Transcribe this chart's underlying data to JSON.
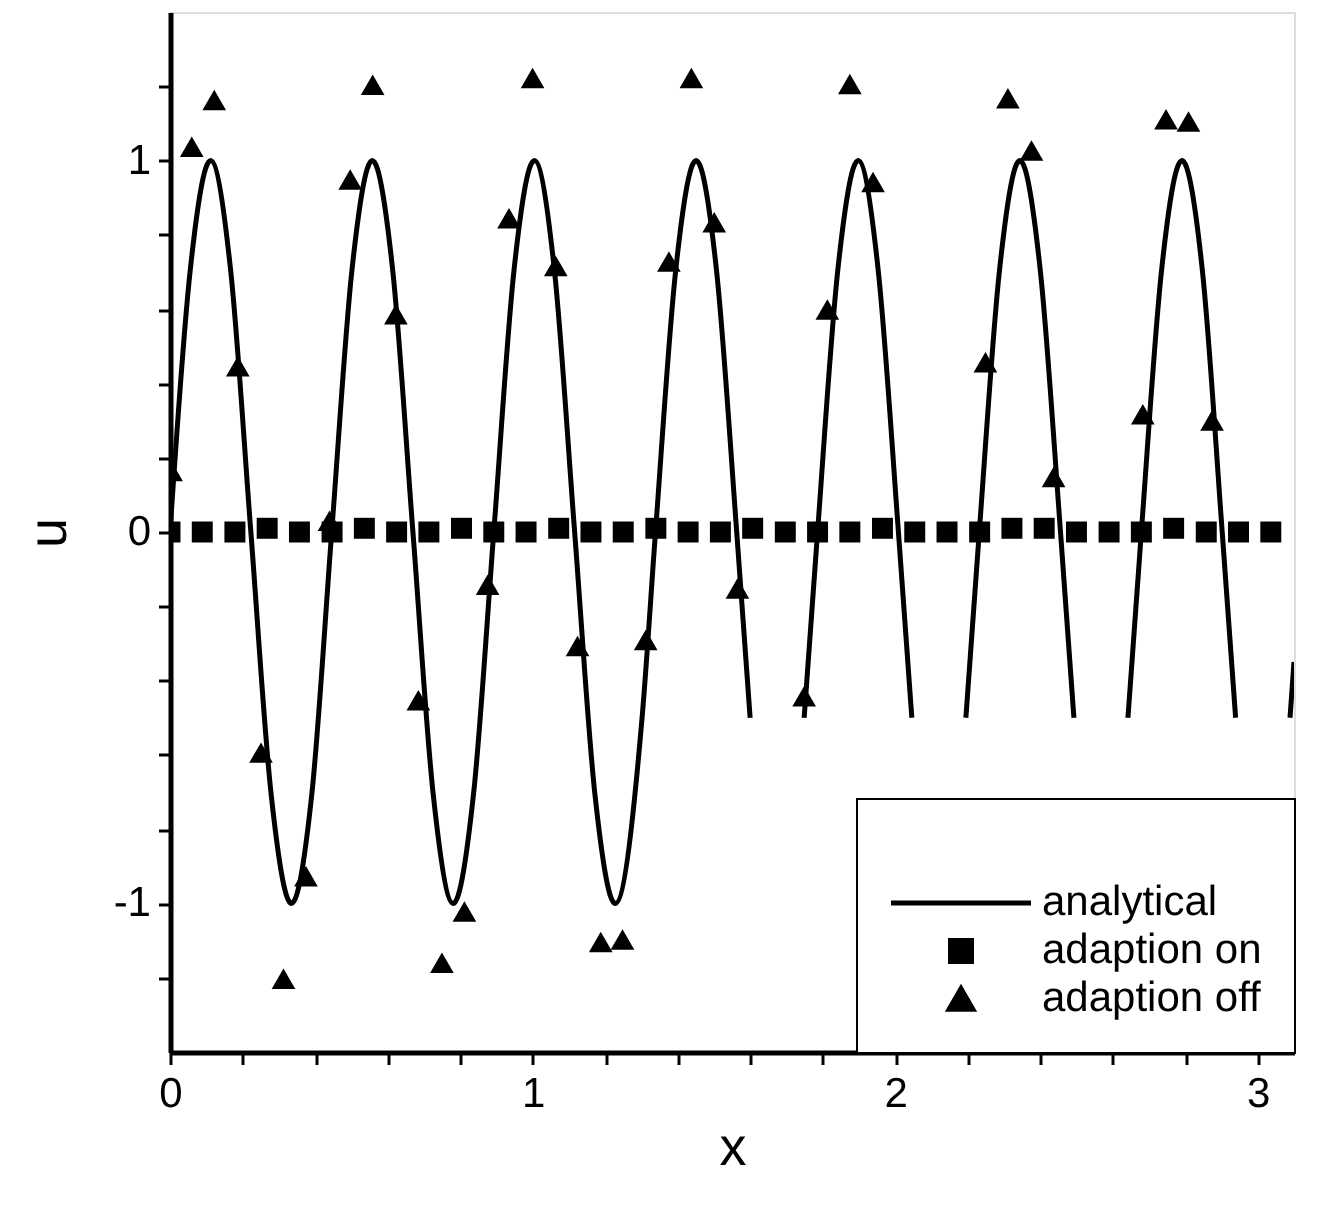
{
  "chart_data": {
    "type": "line",
    "xlabel": "x",
    "ylabel": "u",
    "xlim": [
      0,
      3.1
    ],
    "ylim": [
      -1.4,
      1.4
    ],
    "xticks": [
      0,
      {
        "value": 0.2,
        "label": null
      },
      {
        "value": 0.4,
        "label": null
      },
      {
        "value": 0.6,
        "label": null
      },
      {
        "value": 0.8,
        "label": null
      },
      1,
      {
        "value": 1.2,
        "label": null
      },
      {
        "value": 1.4,
        "label": null
      },
      {
        "value": 1.6,
        "label": null
      },
      {
        "value": 1.8,
        "label": null
      },
      2,
      {
        "value": 2.2,
        "label": null
      },
      {
        "value": 2.4,
        "label": null
      },
      {
        "value": 2.6,
        "label": null
      },
      {
        "value": 2.8,
        "label": null
      },
      3
    ],
    "yticks": [
      {
        "value": -1.2,
        "label": null
      },
      -1,
      {
        "value": -0.8,
        "label": null
      },
      {
        "value": -0.6,
        "label": null
      },
      {
        "value": -0.4,
        "label": null
      },
      {
        "value": -0.2,
        "label": null
      },
      0,
      {
        "value": 0.2,
        "label": null
      },
      {
        "value": 0.4,
        "label": null
      },
      {
        "value": 0.6,
        "label": null
      },
      {
        "value": 0.8,
        "label": null
      },
      1,
      {
        "value": 1.2,
        "label": null
      }
    ],
    "grid": false,
    "legend": "bottom right",
    "series": [
      {
        "name": "analytical",
        "marker": "none",
        "line_style": "solid",
        "color": "#000000",
        "x": [
          0,
          0.056,
          0.112,
          0.167,
          0.223,
          0.279,
          0.335,
          0.391,
          0.446,
          0.502,
          0.558,
          0.614,
          0.67,
          0.726,
          0.781,
          0.837,
          0.893,
          0.949,
          1.005,
          1.06,
          1.116,
          1.172,
          1.228,
          1.302,
          1.339,
          1.395,
          1.451,
          1.507,
          1.563,
          1.6,
          1.7,
          1.749,
          1.786,
          1.842,
          1.898,
          1.953,
          2.009,
          2.046,
          2.15,
          2.195,
          2.232,
          2.288,
          2.344,
          2.4,
          2.456,
          2.493,
          2.6,
          2.642,
          2.679,
          2.735,
          2.791,
          2.847,
          2.902,
          2.939,
          3.0,
          3.089,
          3.1
        ],
        "values": [
          0,
          0.707,
          1,
          0.707,
          0,
          -0.707,
          -1,
          -0.707,
          0,
          0.707,
          1,
          0.707,
          0,
          -0.707,
          -1,
          -0.707,
          0,
          0.707,
          1,
          0.707,
          0,
          -0.707,
          -1,
          -0.5,
          0,
          0.707,
          1,
          0.707,
          0,
          -0.5,
          null,
          -0.5,
          0,
          0.707,
          1,
          0.707,
          0,
          -0.5,
          null,
          -0.5,
          0,
          0.707,
          1,
          0.707,
          0,
          -0.5,
          null,
          -0.5,
          0,
          0.707,
          1,
          0.707,
          0,
          -0.5,
          null,
          -0.5,
          -0.35
        ]
      },
      {
        "name": "adaption on",
        "type": "scatter",
        "marker": "square",
        "color": "#000000",
        "x": [
          0,
          0.089,
          0.179,
          0.268,
          0.357,
          0.447,
          0.536,
          0.625,
          0.714,
          0.804,
          0.893,
          0.982,
          1.072,
          1.161,
          1.25,
          1.34,
          1.429,
          1.518,
          1.607,
          1.697,
          1.786,
          1.875,
          1.965,
          2.054,
          2.143,
          2.233,
          2.322,
          2.411,
          2.5,
          2.59,
          2.679,
          2.768,
          2.858,
          2.947,
          3.036
        ],
        "values": [
          0,
          0,
          0,
          0.01,
          0,
          0,
          0.01,
          0,
          0,
          0.01,
          0,
          0,
          0.01,
          0,
          0,
          0.01,
          0,
          0,
          0.01,
          0,
          0,
          0,
          0.01,
          0,
          0,
          0,
          0.01,
          0.01,
          0,
          0,
          0,
          0.01,
          0,
          0,
          0
        ]
      },
      {
        "name": "adaption off",
        "type": "scatter",
        "marker": "triangle",
        "color": "#000000",
        "x": [
          0.003,
          0.06,
          0.122,
          0.187,
          0.251,
          0.313,
          0.375,
          0.44,
          0.497,
          0.559,
          0.623,
          0.685,
          0.75,
          0.812,
          0.876,
          0.935,
          1.0,
          1.064,
          1.124,
          1.188,
          1.248,
          1.312,
          1.376,
          1.438,
          1.501,
          1.565,
          1.749,
          1.813,
          1.875,
          1.939,
          2.249,
          2.311,
          2.376,
          2.437,
          2.683,
          2.747,
          2.809,
          2.874
        ],
        "values": [
          0.164,
          1.037,
          1.163,
          0.446,
          -0.594,
          -1.203,
          -0.927,
          0.03,
          0.949,
          1.204,
          0.586,
          -0.453,
          -1.16,
          -1.022,
          -0.142,
          0.845,
          1.222,
          0.716,
          -0.307,
          -1.104,
          -1.097,
          -0.291,
          0.728,
          1.222,
          0.834,
          -0.152,
          -0.442,
          0.599,
          1.206,
          0.942,
          0.457,
          1.168,
          1.027,
          0.148,
          0.317,
          1.111,
          1.105,
          0.3
        ]
      }
    ]
  }
}
